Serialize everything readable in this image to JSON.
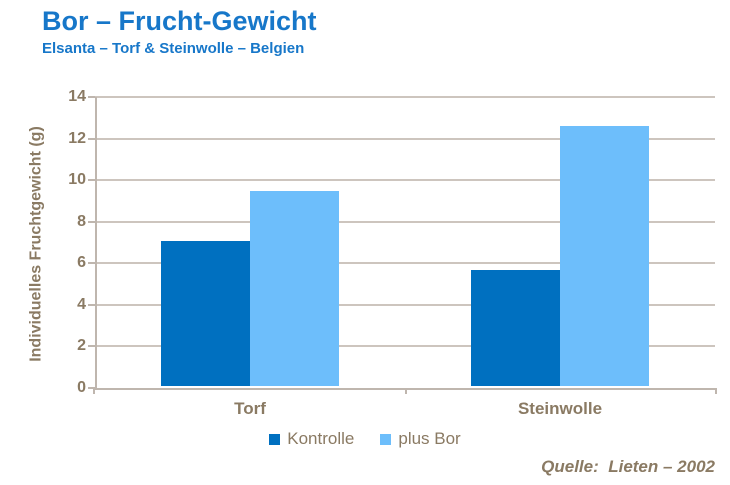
{
  "header": {
    "title": "Bor – Frucht-Gewicht",
    "subtitle": "Elsanta – Torf & Steinwolle – Belgien"
  },
  "source": "Quelle:  Lieten – 2002",
  "colors": {
    "title_blue": "#1777C9",
    "text_brown": "#8A7A63",
    "gridline": "#CDC5BE",
    "axis": "#BFB6AE",
    "kontrolle_blue": "#0070C0",
    "plus_bor_blue": "#6DBEFB"
  },
  "chart_data": {
    "type": "bar",
    "categories": [
      "Torf",
      "Steinwolle"
    ],
    "series": [
      {
        "name": "Kontrolle",
        "color": "#0070C0",
        "values": [
          7.0,
          5.6
        ]
      },
      {
        "name": "plus Bor",
        "color": "#6DBEFB",
        "values": [
          9.4,
          12.5
        ]
      }
    ],
    "title": "Bor – Frucht-Gewicht",
    "subtitle": "Elsanta – Torf & Steinwolle – Belgien",
    "xlabel": "",
    "ylabel": "Individuelles Fruchtgewicht (g)",
    "ylim": [
      0,
      14
    ],
    "ytick_step": 2,
    "grid": true,
    "legend_position": "bottom",
    "annotations": [
      "Quelle:  Lieten – 2002"
    ]
  }
}
